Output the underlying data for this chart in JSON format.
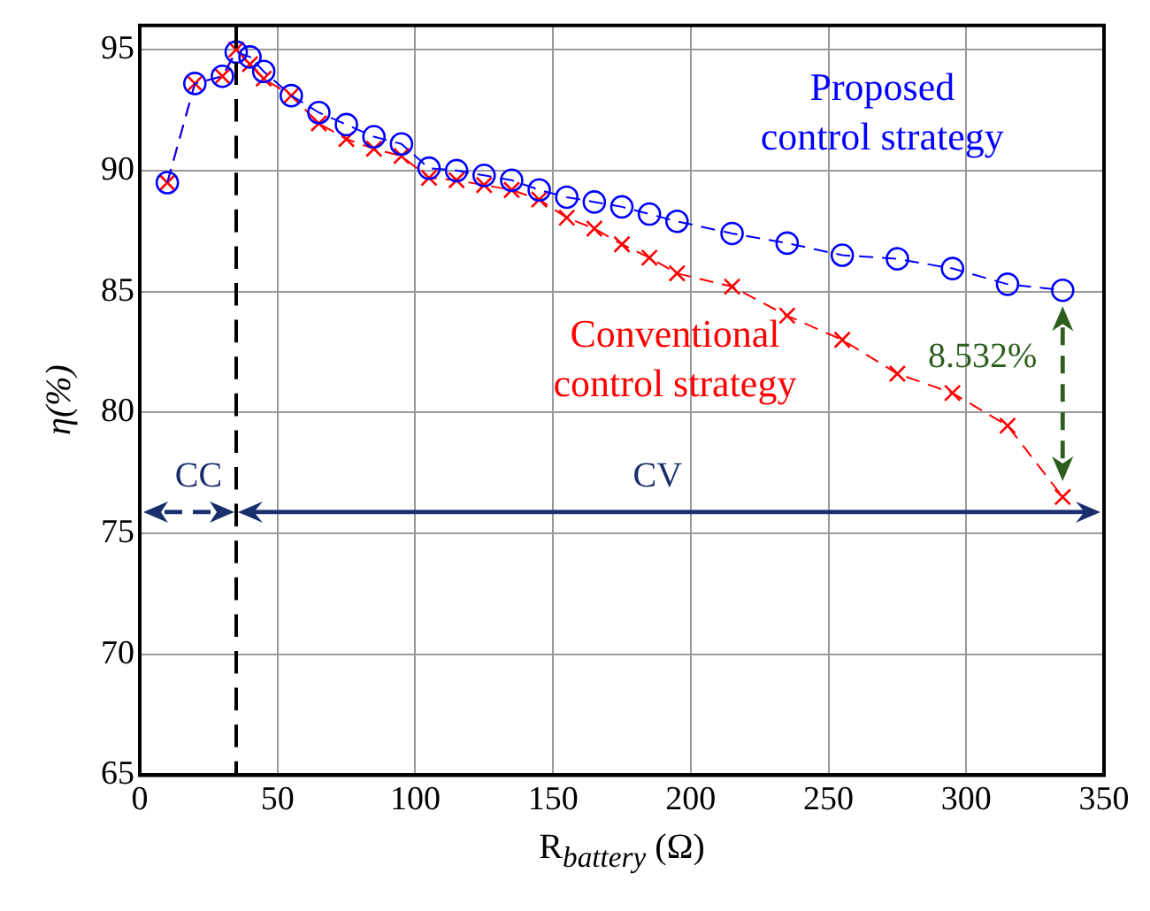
{
  "chart_data": {
    "type": "line",
    "xlabel": "R$_{battery}$ (Ω)",
    "ylabel": "η(%)",
    "x": [
      10,
      20,
      30,
      35,
      40,
      45,
      55,
      65,
      75,
      85,
      95,
      105,
      115,
      125,
      135,
      145,
      155,
      165,
      175,
      185,
      195,
      215,
      235,
      255,
      275,
      295,
      315,
      335
    ],
    "series": [
      {
        "name": "Proposed control strategy",
        "color": "#0000ff",
        "marker": "circle",
        "values": [
          89.5,
          93.6,
          93.9,
          94.9,
          94.7,
          94.1,
          93.1,
          92.4,
          91.9,
          91.4,
          91.1,
          90.1,
          90.0,
          89.8,
          89.6,
          89.2,
          88.9,
          88.7,
          88.5,
          88.2,
          87.9,
          87.4,
          87.0,
          86.5,
          86.35,
          85.95,
          85.3,
          85.05
        ]
      },
      {
        "name": "Conventional control strategy",
        "color": "#ff0000",
        "marker": "cross",
        "values": [
          89.5,
          93.6,
          93.9,
          95.0,
          94.4,
          93.8,
          93.1,
          91.95,
          91.3,
          90.9,
          90.6,
          89.7,
          89.6,
          89.4,
          89.2,
          88.8,
          88.05,
          87.6,
          86.95,
          86.4,
          85.75,
          85.2,
          84.0,
          83.0,
          81.6,
          80.8,
          79.45,
          76.5
        ]
      }
    ],
    "xlim": [
      0,
      350
    ],
    "xticks": [
      0,
      50,
      100,
      150,
      200,
      250,
      300,
      350
    ],
    "ylim": [
      65,
      96
    ],
    "yticks": [
      65,
      70,
      75,
      80,
      85,
      90,
      95
    ],
    "grid": true,
    "legend": false,
    "line_style": "dashed",
    "ref_lines": [
      {
        "axis": "x",
        "value": 35,
        "color": "#000000",
        "line_style": "dashed"
      }
    ],
    "annotations": [
      "CC",
      "CV",
      "8.532%"
    ]
  }
}
